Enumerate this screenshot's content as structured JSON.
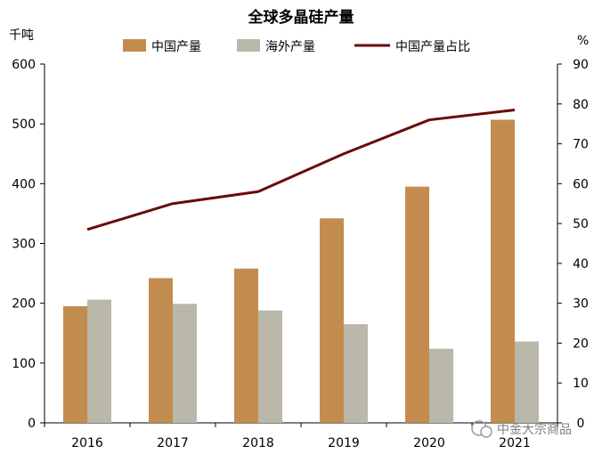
{
  "chart_data": {
    "type": "bar",
    "title": "全球多晶硅产量",
    "y_left_unit": "千吨",
    "y_right_unit": "%",
    "categories": [
      "2016",
      "2017",
      "2018",
      "2019",
      "2020",
      "2021"
    ],
    "ylim_left": [
      0,
      600
    ],
    "yticks_left": [
      "0",
      "100",
      "200",
      "300",
      "400",
      "500",
      "600"
    ],
    "ylim_right": [
      0,
      90
    ],
    "yticks_right": [
      "0",
      "10",
      "20",
      "30",
      "40",
      "50",
      "60",
      "70",
      "80",
      "90"
    ],
    "grid": false,
    "legend_position": "top",
    "series": [
      {
        "name": "中国产量",
        "type": "bar",
        "axis": "left",
        "color": "#c28c4e",
        "values": [
          195,
          242,
          258,
          342,
          395,
          507
        ]
      },
      {
        "name": "海外产量",
        "type": "bar",
        "axis": "left",
        "color": "#b9b8a9",
        "values": [
          206,
          199,
          188,
          165,
          124,
          136
        ]
      },
      {
        "name": "中国产量占比",
        "type": "line",
        "axis": "right",
        "color": "#6b0a0a",
        "values": [
          48.5,
          55,
          58,
          67.5,
          76,
          78.5
        ]
      }
    ]
  },
  "watermark": "中金大宗商品"
}
